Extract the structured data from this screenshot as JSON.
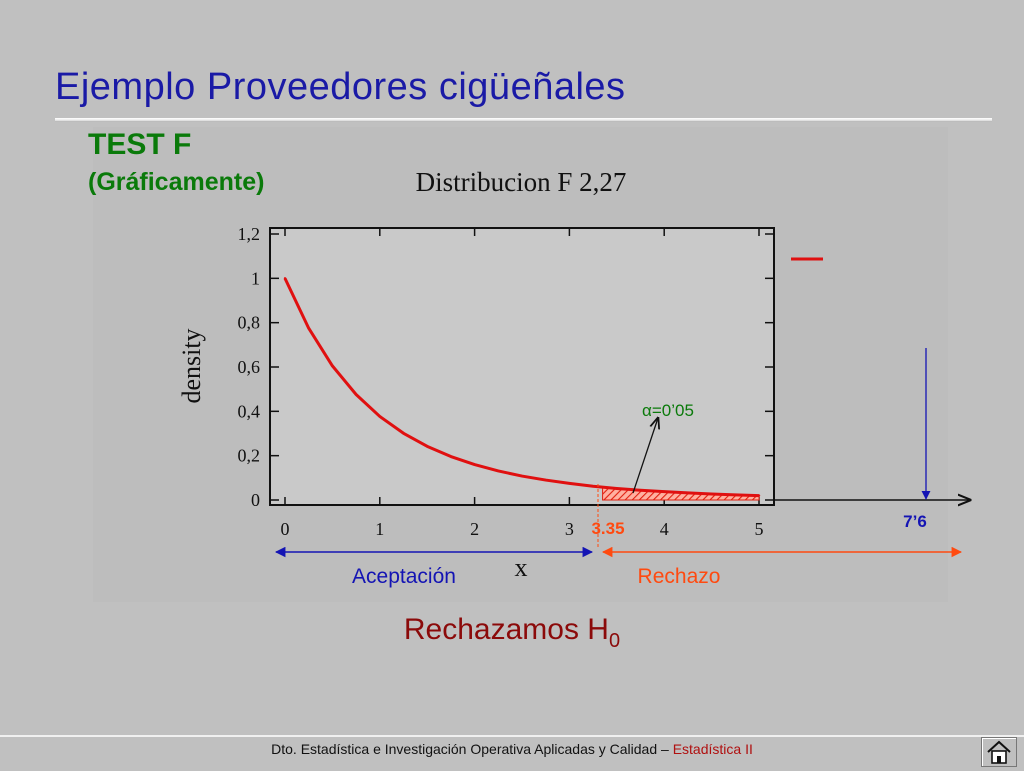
{
  "slide": {
    "title": "Ejemplo Proveedores cigüeñales",
    "test_label": "TEST F",
    "test_sublabel": "(Gráficamente)"
  },
  "chart_data": {
    "type": "line",
    "title": "Distribucion F 2,27",
    "xlabel": "x",
    "ylabel": "density",
    "xlim": [
      0,
      5
    ],
    "ylim": [
      0,
      1.2
    ],
    "x_ticks": [
      "0",
      "1",
      "2",
      "3",
      "4",
      "5"
    ],
    "y_ticks": [
      "0",
      "0,2",
      "0,4",
      "0,6",
      "0,8",
      "1",
      "1,2"
    ],
    "series": [
      {
        "x": [
          0,
          0.25,
          0.5,
          0.75,
          1,
          1.25,
          1.5,
          1.75,
          2,
          2.25,
          2.5,
          2.75,
          3,
          3.25,
          3.5,
          3.75,
          4,
          4.25,
          4.5,
          4.75,
          5
        ],
        "values": [
          1.0,
          0.775,
          0.605,
          0.476,
          0.377,
          0.301,
          0.242,
          0.196,
          0.16,
          0.131,
          0.108,
          0.09,
          0.075,
          0.062,
          0.052,
          0.044,
          0.038,
          0.032,
          0.027,
          0.023,
          0.02
        ],
        "color": "#e01010"
      }
    ],
    "critical_value": 3.35,
    "critical_label": "3.35",
    "alpha_label": "=0’05",
    "alpha_symbol": "α",
    "statistic_value": 7.6,
    "statistic_label": "7’6",
    "regions": {
      "acceptance_label": "Aceptación",
      "rejection_label": "Rechazo",
      "acceptance_color": "#1414b4",
      "rejection_color": "#ff4a10"
    },
    "grid": false
  },
  "conclusion": {
    "text": "Rechazamos H",
    "subscript": "0"
  },
  "footer": {
    "department": "Dto. Estadística e Investigación Operativa Aplicadas y Calidad – ",
    "course": "Estadística II",
    "home_icon": "home-icon"
  }
}
